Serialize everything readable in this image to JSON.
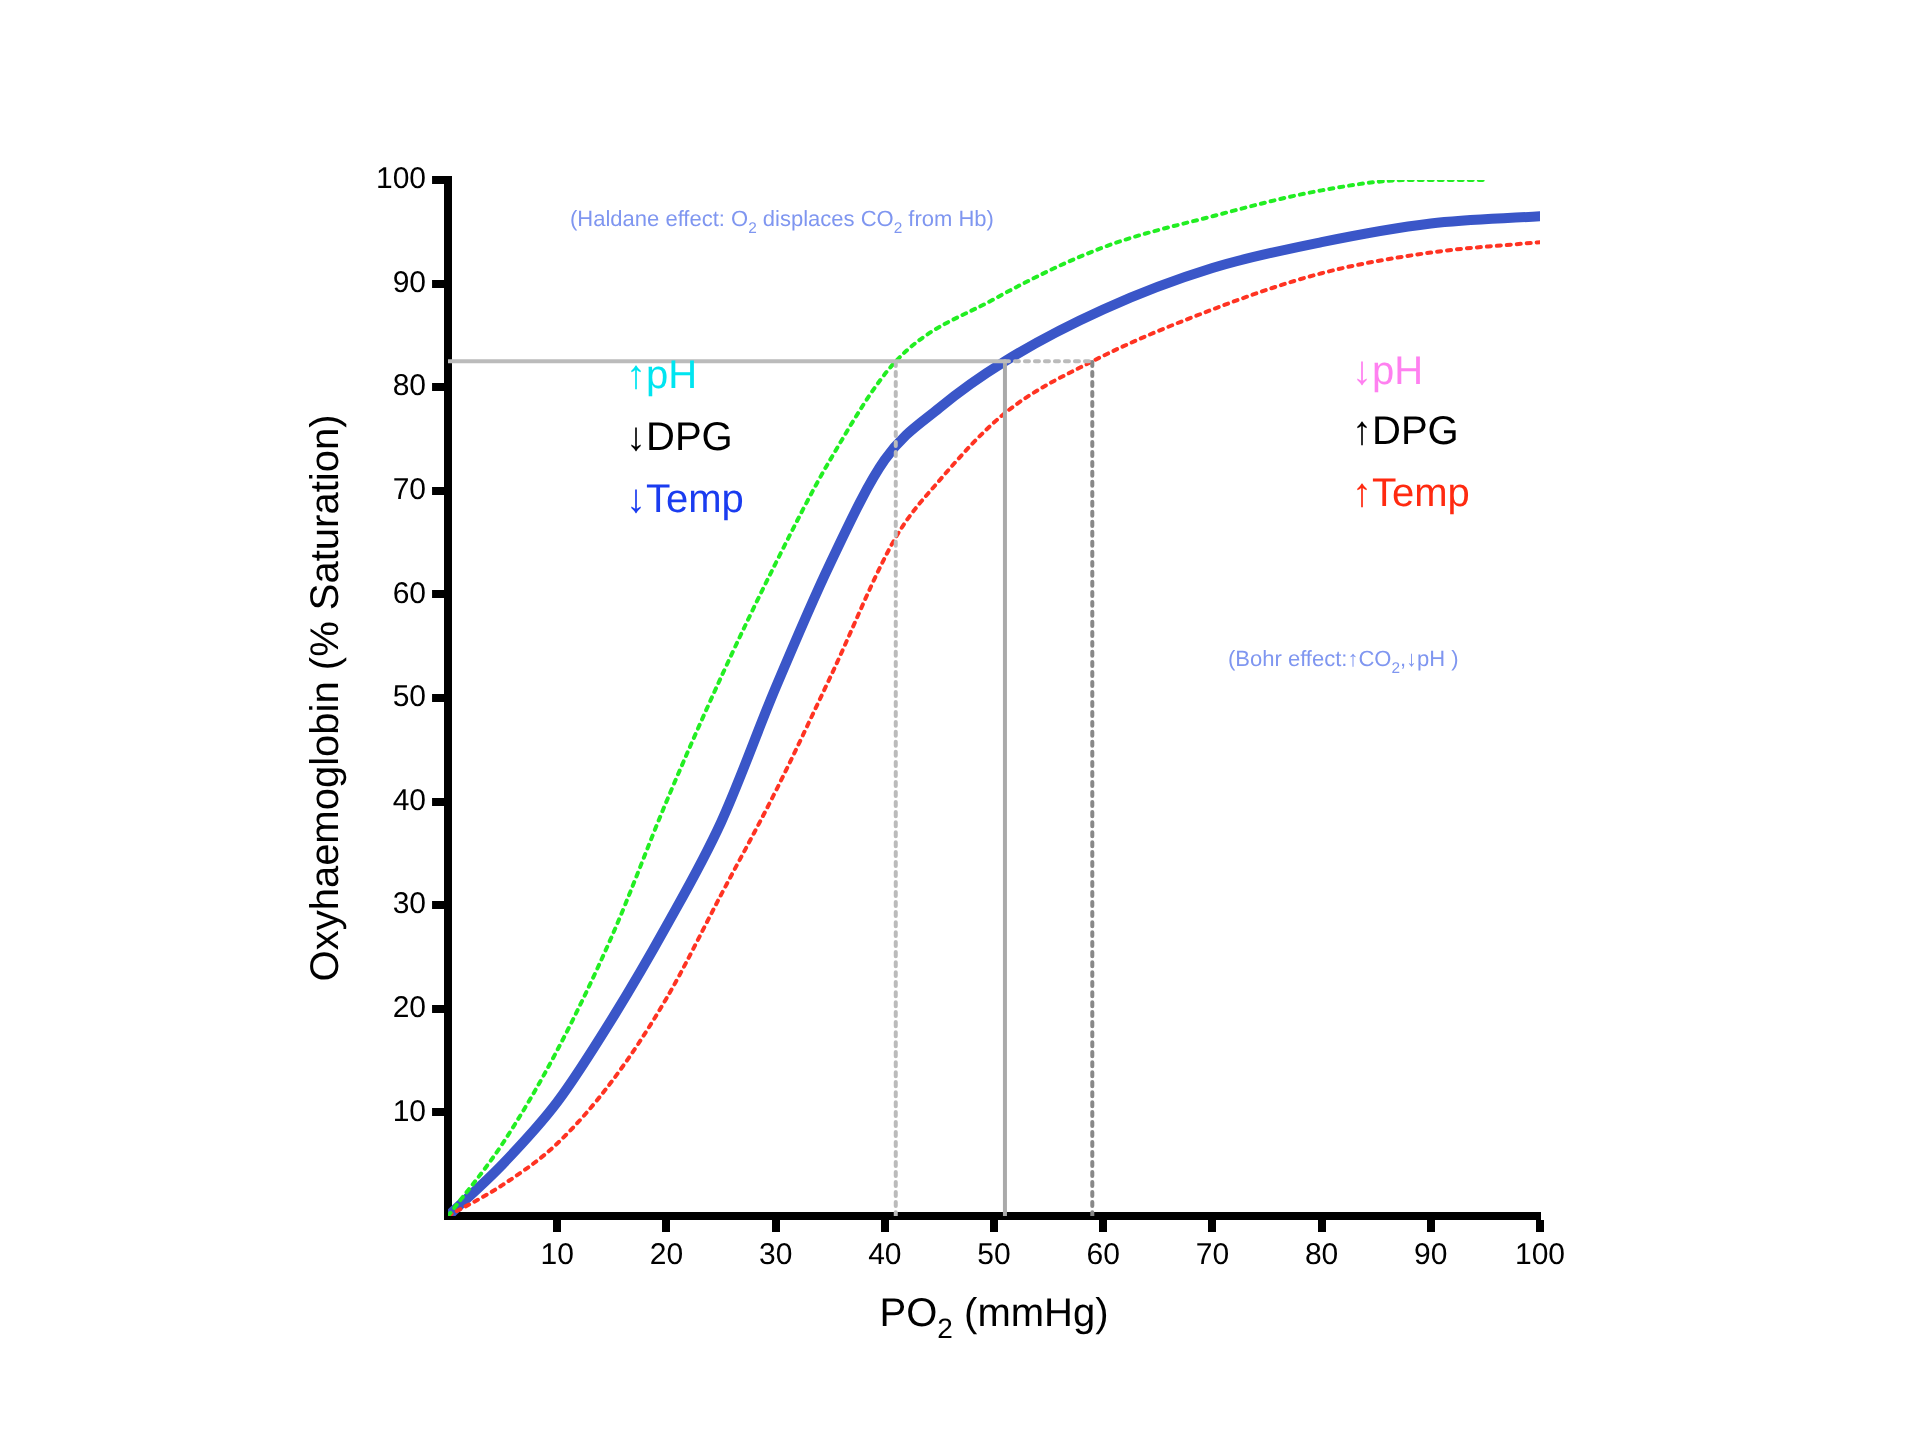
{
  "chart_data": {
    "type": "line",
    "xlabel": "PO$_{2}$ (mmHg)",
    "ylabel": "Oxyhaemoglobin (% Saturation)",
    "xlim": [
      0,
      100
    ],
    "xticks": [
      10,
      20,
      30,
      40,
      50,
      60,
      70,
      80,
      90,
      100
    ],
    "ylim": [
      0,
      100
    ],
    "yticks": [
      10,
      20,
      30,
      40,
      50,
      60,
      70,
      80,
      90,
      100
    ],
    "grid": false,
    "legend": false,
    "marker": "none",
    "series": [
      {
        "color": "#bbbbbb",
        "line_style": "solid",
        "x": [
          0,
          51
        ],
        "values": [
          82.5,
          82.5
        ]
      },
      {
        "color": "#bbbbbb",
        "line_style": "dotted",
        "x": [
          51,
          59
        ],
        "values": [
          82.5,
          82.5
        ]
      },
      {
        "color": "#bbbbbb",
        "line_style": "dotted",
        "x": [
          41,
          41
        ],
        "values": [
          0,
          82.5
        ]
      },
      {
        "color": "#aaaaaa",
        "line_style": "solid",
        "x": [
          51,
          51
        ],
        "values": [
          0,
          82.5
        ]
      },
      {
        "color": "#888888",
        "line_style": "dotted",
        "x": [
          59,
          59
        ],
        "values": [
          0,
          82.5
        ]
      },
      {
        "color": "#22ee22",
        "line_style": "dotted",
        "x": [
          0,
          5,
          10,
          15,
          20,
          25,
          30,
          35,
          41,
          50,
          60,
          70,
          80,
          88,
          95
        ],
        "values": [
          0,
          7,
          16,
          27,
          40,
          52,
          63,
          73,
          82.5,
          88.5,
          93.5,
          96.5,
          99,
          100,
          100
        ]
      },
      {
        "color": "#ff3322",
        "line_style": "dotted",
        "x": [
          0,
          5,
          10,
          15,
          20,
          25,
          30,
          35,
          41,
          45,
          51,
          59,
          70,
          80,
          90,
          100
        ],
        "values": [
          0,
          3,
          7,
          13,
          21,
          31,
          41,
          52,
          65.5,
          71,
          77.5,
          82.5,
          87.5,
          91,
          93,
          94
        ]
      },
      {
        "color": "#3a56c8",
        "line_style": "solid",
        "x": [
          0,
          5,
          10,
          15,
          20,
          25,
          30,
          35,
          40,
          45,
          51,
          60,
          70,
          80,
          90,
          100
        ],
        "values": [
          0,
          5,
          11,
          19,
          28,
          38,
          51,
          63,
          73,
          78,
          82.5,
          87.5,
          91.5,
          94,
          95.8,
          96.5
        ]
      }
    ],
    "annotations": [
      "(Haldane effect: O$_{2}$ displaces CO$_{2}$ from Hb)",
      "↑pH",
      "↓DPG",
      "↓Temp",
      "↓pH",
      "↑DPG",
      "↑Temp",
      "(Bohr effect:↑CO$_{2}$,↓pH )"
    ]
  }
}
